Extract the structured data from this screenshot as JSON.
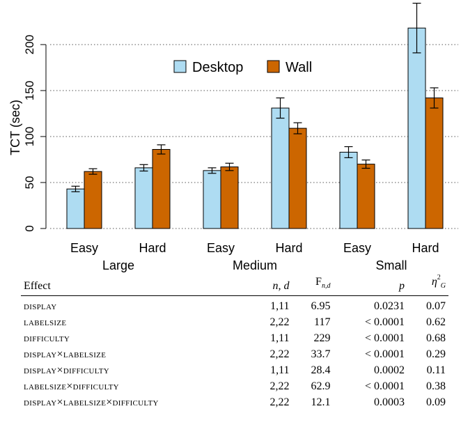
{
  "chart_data": {
    "type": "bar",
    "ylabel": "TCT (sec)",
    "ylim": [
      0,
      240
    ],
    "yticks": [
      0,
      50,
      100,
      150,
      200
    ],
    "grid": "horizontal dotted",
    "legend_position": "upper-center",
    "groups": [
      {
        "label": "Large",
        "categories": [
          "Easy",
          "Hard"
        ]
      },
      {
        "label": "Medium",
        "categories": [
          "Easy",
          "Hard"
        ]
      },
      {
        "label": "Small",
        "categories": [
          "Easy",
          "Hard"
        ]
      }
    ],
    "series": [
      {
        "name": "Desktop",
        "color": "#aedcf2",
        "values": [
          43,
          66,
          63,
          131,
          83,
          218
        ],
        "errors": [
          3,
          3.5,
          3,
          11,
          6,
          27
        ]
      },
      {
        "name": "Wall",
        "color": "#cc6600",
        "values": [
          62,
          86,
          67,
          109,
          70,
          142
        ],
        "errors": [
          3,
          5,
          4,
          6,
          4.5,
          11
        ]
      }
    ]
  },
  "table": {
    "headers": {
      "effect": "Effect",
      "nd": "n, d",
      "f_main": "F",
      "f_sub": "n,d",
      "p": "p",
      "eta_main": "η",
      "eta_sup": "2",
      "eta_sub": "G"
    },
    "rows": [
      {
        "effect": "DISPLAY",
        "nd": "1,11",
        "f": "6.95",
        "p": "0.0231",
        "eta": "0.07"
      },
      {
        "effect": "LABELSIZE",
        "nd": "2,22",
        "f": "117",
        "p": "< 0.0001",
        "eta": "0.62"
      },
      {
        "effect": "DIFFICULTY",
        "nd": "1,11",
        "f": "229",
        "p": "< 0.0001",
        "eta": "0.68"
      },
      {
        "effect": "DISPLAY×LABELSIZE",
        "nd": "2,22",
        "f": "33.7",
        "p": "< 0.0001",
        "eta": "0.29"
      },
      {
        "effect": "DISPLAY×DIFFICULTY",
        "nd": "1,11",
        "f": "28.4",
        "p": "0.0002",
        "eta": "0.11"
      },
      {
        "effect": "LABELSIZE×DIFFICULTY",
        "nd": "2,22",
        "f": "62.9",
        "p": "< 0.0001",
        "eta": "0.38"
      },
      {
        "effect": "DISPLAY×LABELSIZE×DIFFICULTY",
        "nd": "2,22",
        "f": "12.1",
        "p": "0.0003",
        "eta": "0.09"
      }
    ]
  }
}
